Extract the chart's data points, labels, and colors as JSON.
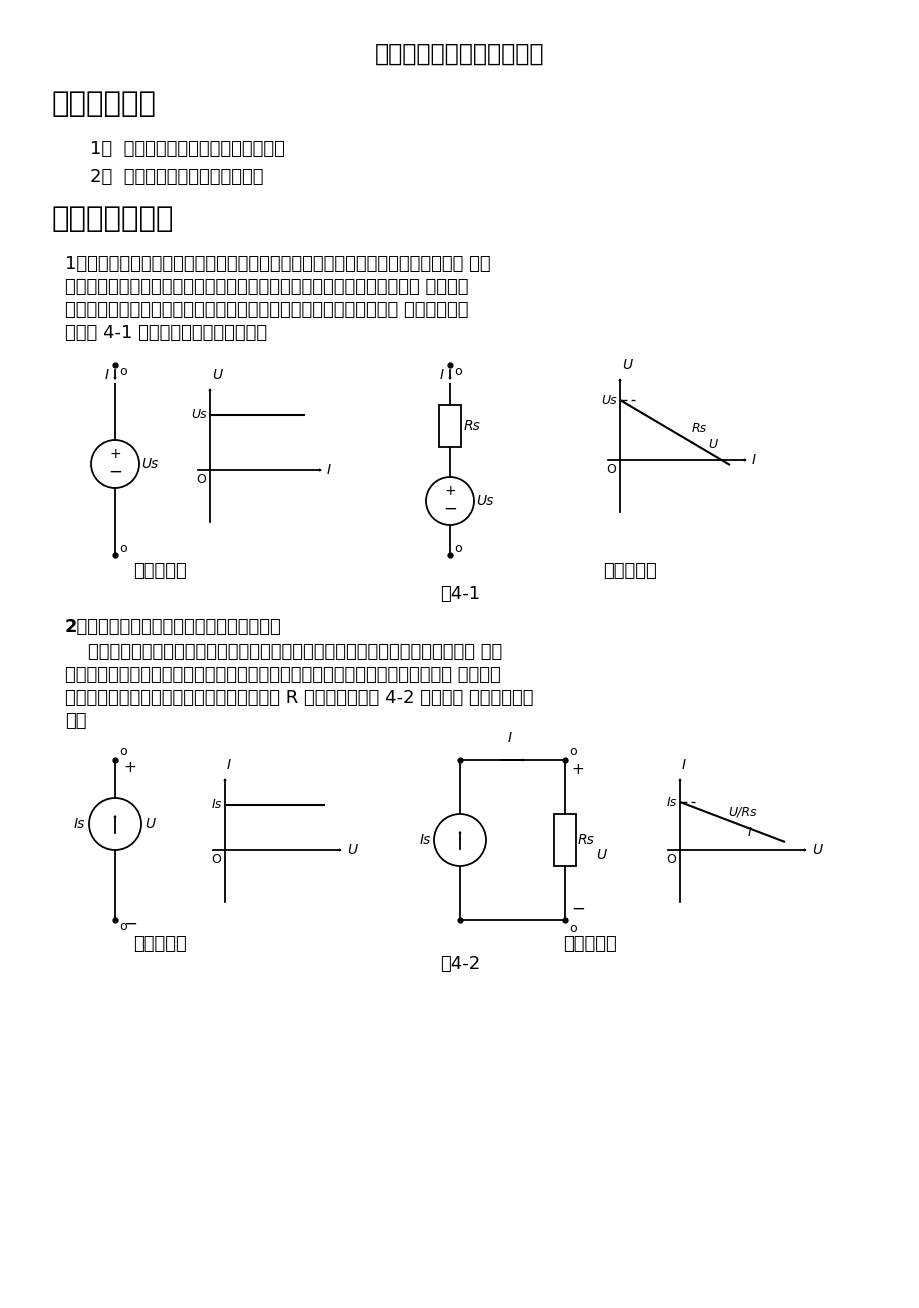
{
  "title": "电压源与电流源的等效变换",
  "section1_title": "一、实验目的",
  "item1": "1、  加深理解电压源、电流源的概念。",
  "item2": "2、  掌握电源外特性的测试方法。",
  "section2_title": "二、原理及说明",
  "para1_line1": "1、电压源是有源元件，可分为理想电压源与实际电压源。理想电压源在一定的电流 范围",
  "para1_line2": "内，具有很小的电阻，它的输出电压不因负载而改变。而实际电压源的端电 压随着电",
  "para1_line3": "流变化而变化，即它具有一定的内阻值。理想电压源与实际电压源以及 它们的伏安特",
  "para1_line4": "性如图 4-1 所示（参阅实验一内容）。",
  "ideal_voltage_label": "理想电压源",
  "real_voltage_label": "实际电压源",
  "fig1_label": "图4-1",
  "section2_bold": "2、电流源也分为理想电流源和实际电流源。",
  "para2_line1": "    理想电流源的电流是恒定的，不因外电路不同而改变。实际电流源的电流与所联接 的电",
  "para2_line2": "路有关。当其端电压增高时，通过外电路的电流要降低，端压越低通过外电路的电 流越大。",
  "para2_line3": "实际电流源可以用一个理想电流源和一个内阻 R 并联来表示。图 4-2 为两种电 流源的伏安特",
  "para2_line4": "性。",
  "ideal_current_label": "理想电流源",
  "real_current_label": "实际电流源",
  "fig2_label": "图4-2",
  "bg_color": "#ffffff",
  "text_color": "#000000"
}
